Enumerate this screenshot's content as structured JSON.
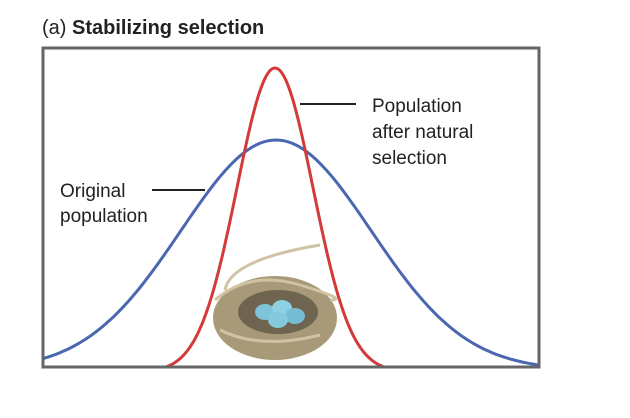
{
  "title": {
    "label": "(a)",
    "text": "Stabilizing selection"
  },
  "labels": {
    "original": [
      "Original",
      "population"
    ],
    "after": [
      "Population",
      "after natural",
      "selection"
    ]
  }
}
